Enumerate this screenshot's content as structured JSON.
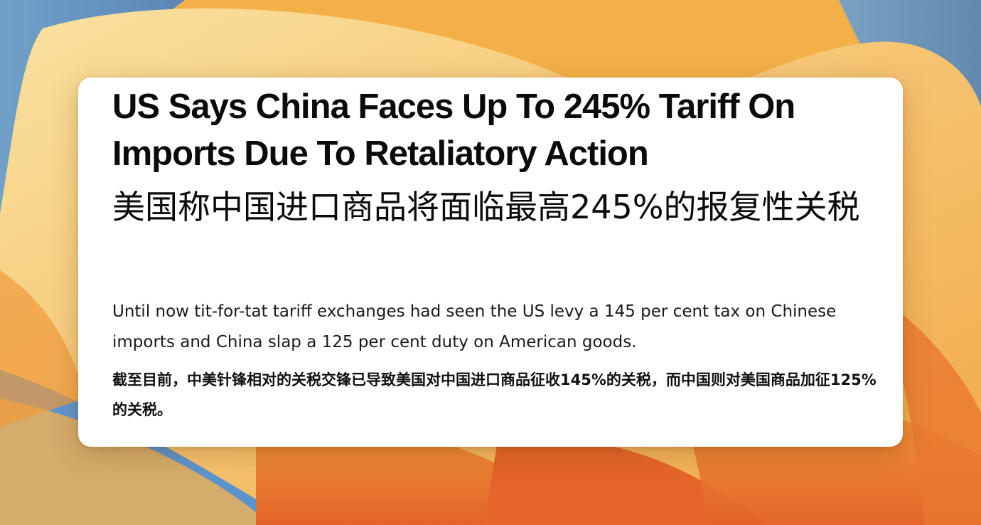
{
  "wallpaper": {
    "colors": {
      "base": "#f4b64a",
      "light": "#f7d98a",
      "orange": "#ef8c2f",
      "deep": "#e4602a",
      "blue": "#4a8fd8"
    }
  },
  "card": {
    "headline_en": "US Says China Faces Up To 245% Tariff On Imports Due To Retaliatory Action",
    "headline_zh": "美国称中国进口商品将面临最高245%的报复性关税",
    "body_en": "Until now tit-for-tat tariff exchanges had seen the US levy a 145 per cent tax on Chinese imports and China slap a 125 per cent duty on American goods.",
    "body_zh": "截至目前，中美针锋相对的关税交锋已导致美国对中国进口商品征收145%的关税，而中国则对美国商品加征125%的关税。"
  }
}
